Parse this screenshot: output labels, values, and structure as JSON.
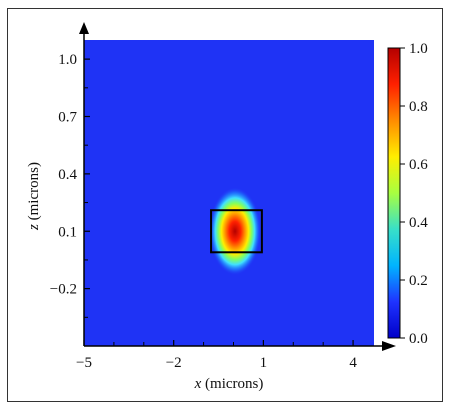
{
  "chart_data": {
    "type": "heatmap",
    "title": "",
    "xlabel": {
      "var": "x",
      "rest": " (microns)"
    },
    "ylabel": {
      "var": "z",
      "rest": " (microns)"
    },
    "xlim": [
      -5,
      4.7
    ],
    "ylim": [
      -0.5,
      1.1
    ],
    "xticks": [
      "−5",
      "−2",
      "1",
      "4"
    ],
    "xtick_values": [
      -5,
      -2,
      1,
      4
    ],
    "yticks": [
      "1.0",
      "0.7",
      "0.4",
      "0.1",
      "−0.2"
    ],
    "ytick_values": [
      1.0,
      0.7,
      0.4,
      0.1,
      -0.2
    ],
    "field": {
      "background_value": 0.0,
      "peak_value": 1.0,
      "peak_center_x": 0.05,
      "peak_center_z": 0.1,
      "waveguide_core": {
        "x_range": [
          -0.75,
          0.95
        ],
        "z_range": [
          -0.01,
          0.21
        ]
      }
    },
    "colorbar": {
      "min": 0.0,
      "max": 1.0,
      "tick_labels": [
        "1.0",
        "0.8",
        "0.6",
        "0.4",
        "0.2",
        "0.0"
      ],
      "tick_values": [
        1.0,
        0.8,
        0.6,
        0.4,
        0.2,
        0.0
      ],
      "colors": [
        "#0000c8",
        "#1f33ff",
        "#00b4ff",
        "#38e0c8",
        "#a8ff40",
        "#ffee00",
        "#ff8c00",
        "#ff2000",
        "#b40000"
      ]
    },
    "colors": {
      "background_field": "#1f33f5",
      "box": "#000000"
    }
  }
}
